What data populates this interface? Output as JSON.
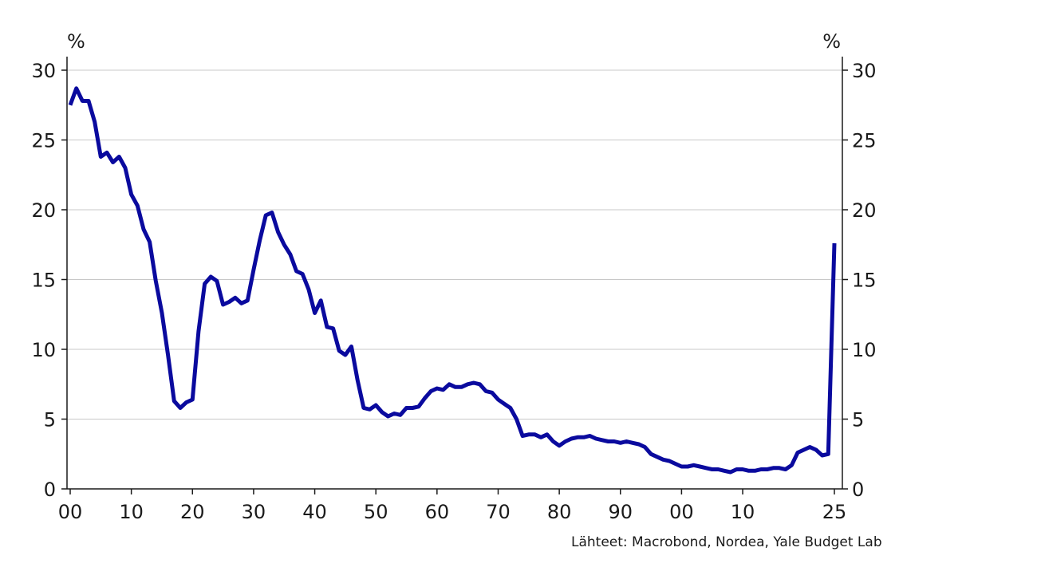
{
  "chart_data": {
    "type": "line",
    "y_unit_left": "%",
    "y_unit_right": "%",
    "ylim": [
      0,
      30
    ],
    "xlim": [
      1900,
      2025
    ],
    "y_ticks": [
      {
        "value": 0,
        "label": "0"
      },
      {
        "value": 5,
        "label": "5"
      },
      {
        "value": 10,
        "label": "10"
      },
      {
        "value": 15,
        "label": "15"
      },
      {
        "value": 20,
        "label": "20"
      },
      {
        "value": 25,
        "label": "25"
      },
      {
        "value": 30,
        "label": "30"
      }
    ],
    "x_ticks": [
      {
        "value": 1900,
        "label": "00"
      },
      {
        "value": 1910,
        "label": "10"
      },
      {
        "value": 1920,
        "label": "20"
      },
      {
        "value": 1930,
        "label": "30"
      },
      {
        "value": 1940,
        "label": "40"
      },
      {
        "value": 1950,
        "label": "50"
      },
      {
        "value": 1960,
        "label": "60"
      },
      {
        "value": 1970,
        "label": "70"
      },
      {
        "value": 1980,
        "label": "80"
      },
      {
        "value": 1990,
        "label": "90"
      },
      {
        "value": 2000,
        "label": "00"
      },
      {
        "value": 2010,
        "label": "10"
      },
      {
        "value": 2025,
        "label": "25"
      }
    ],
    "grid": "horizontal",
    "line_color": "#0a0a9e",
    "series": [
      {
        "x": [
          1900,
          1901,
          1902,
          1903,
          1904,
          1905,
          1906,
          1907,
          1908,
          1909,
          1910,
          1911,
          1912,
          1913,
          1914,
          1915,
          1916,
          1917,
          1918,
          1919,
          1920,
          1921,
          1922,
          1923,
          1924,
          1925,
          1926,
          1927,
          1928,
          1929,
          1930,
          1931,
          1932,
          1933,
          1934,
          1935,
          1936,
          1937,
          1938,
          1939,
          1940,
          1941,
          1942,
          1943,
          1944,
          1945,
          1946,
          1947,
          1948,
          1949,
          1950,
          1951,
          1952,
          1953,
          1954,
          1955,
          1956,
          1957,
          1958,
          1959,
          1960,
          1961,
          1962,
          1963,
          1964,
          1965,
          1966,
          1967,
          1968,
          1969,
          1970,
          1971,
          1972,
          1973,
          1974,
          1975,
          1976,
          1977,
          1978,
          1979,
          1980,
          1981,
          1982,
          1983,
          1984,
          1985,
          1986,
          1987,
          1988,
          1989,
          1990,
          1991,
          1992,
          1993,
          1994,
          1995,
          1996,
          1997,
          1998,
          1999,
          2000,
          2001,
          2002,
          2003,
          2004,
          2005,
          2006,
          2007,
          2008,
          2009,
          2010,
          2011,
          2012,
          2013,
          2014,
          2015,
          2016,
          2017,
          2018,
          2019,
          2020,
          2021,
          2022,
          2023,
          2024,
          2025
        ],
        "values": [
          27.5,
          28.7,
          27.8,
          27.8,
          26.3,
          23.8,
          24.1,
          23.4,
          23.8,
          23.0,
          21.1,
          20.3,
          18.6,
          17.7,
          14.9,
          12.6,
          9.6,
          6.3,
          5.8,
          6.2,
          6.4,
          11.3,
          14.7,
          15.2,
          14.9,
          13.2,
          13.4,
          13.7,
          13.3,
          13.5,
          15.7,
          17.8,
          19.6,
          19.8,
          18.4,
          17.5,
          16.8,
          15.6,
          15.4,
          14.3,
          12.6,
          13.5,
          11.6,
          11.5,
          9.9,
          9.6,
          10.2,
          7.8,
          5.8,
          5.7,
          6.0,
          5.5,
          5.2,
          5.4,
          5.3,
          5.8,
          5.8,
          5.9,
          6.5,
          7.0,
          7.2,
          7.1,
          7.5,
          7.3,
          7.3,
          7.5,
          7.6,
          7.5,
          7.0,
          6.9,
          6.4,
          6.1,
          5.8,
          5.0,
          3.8,
          3.9,
          3.9,
          3.7,
          3.9,
          3.4,
          3.1,
          3.4,
          3.6,
          3.7,
          3.7,
          3.8,
          3.6,
          3.5,
          3.4,
          3.4,
          3.3,
          3.4,
          3.3,
          3.2,
          3.0,
          2.5,
          2.3,
          2.1,
          2.0,
          1.8,
          1.6,
          1.6,
          1.7,
          1.6,
          1.5,
          1.4,
          1.4,
          1.3,
          1.2,
          1.4,
          1.4,
          1.3,
          1.3,
          1.4,
          1.4,
          1.5,
          1.5,
          1.4,
          1.7,
          2.6,
          2.8,
          3.0,
          2.8,
          2.4,
          2.5,
          17.6
        ]
      }
    ],
    "source": "Lähteet: Macrobond, Nordea, Yale Budget Lab"
  }
}
